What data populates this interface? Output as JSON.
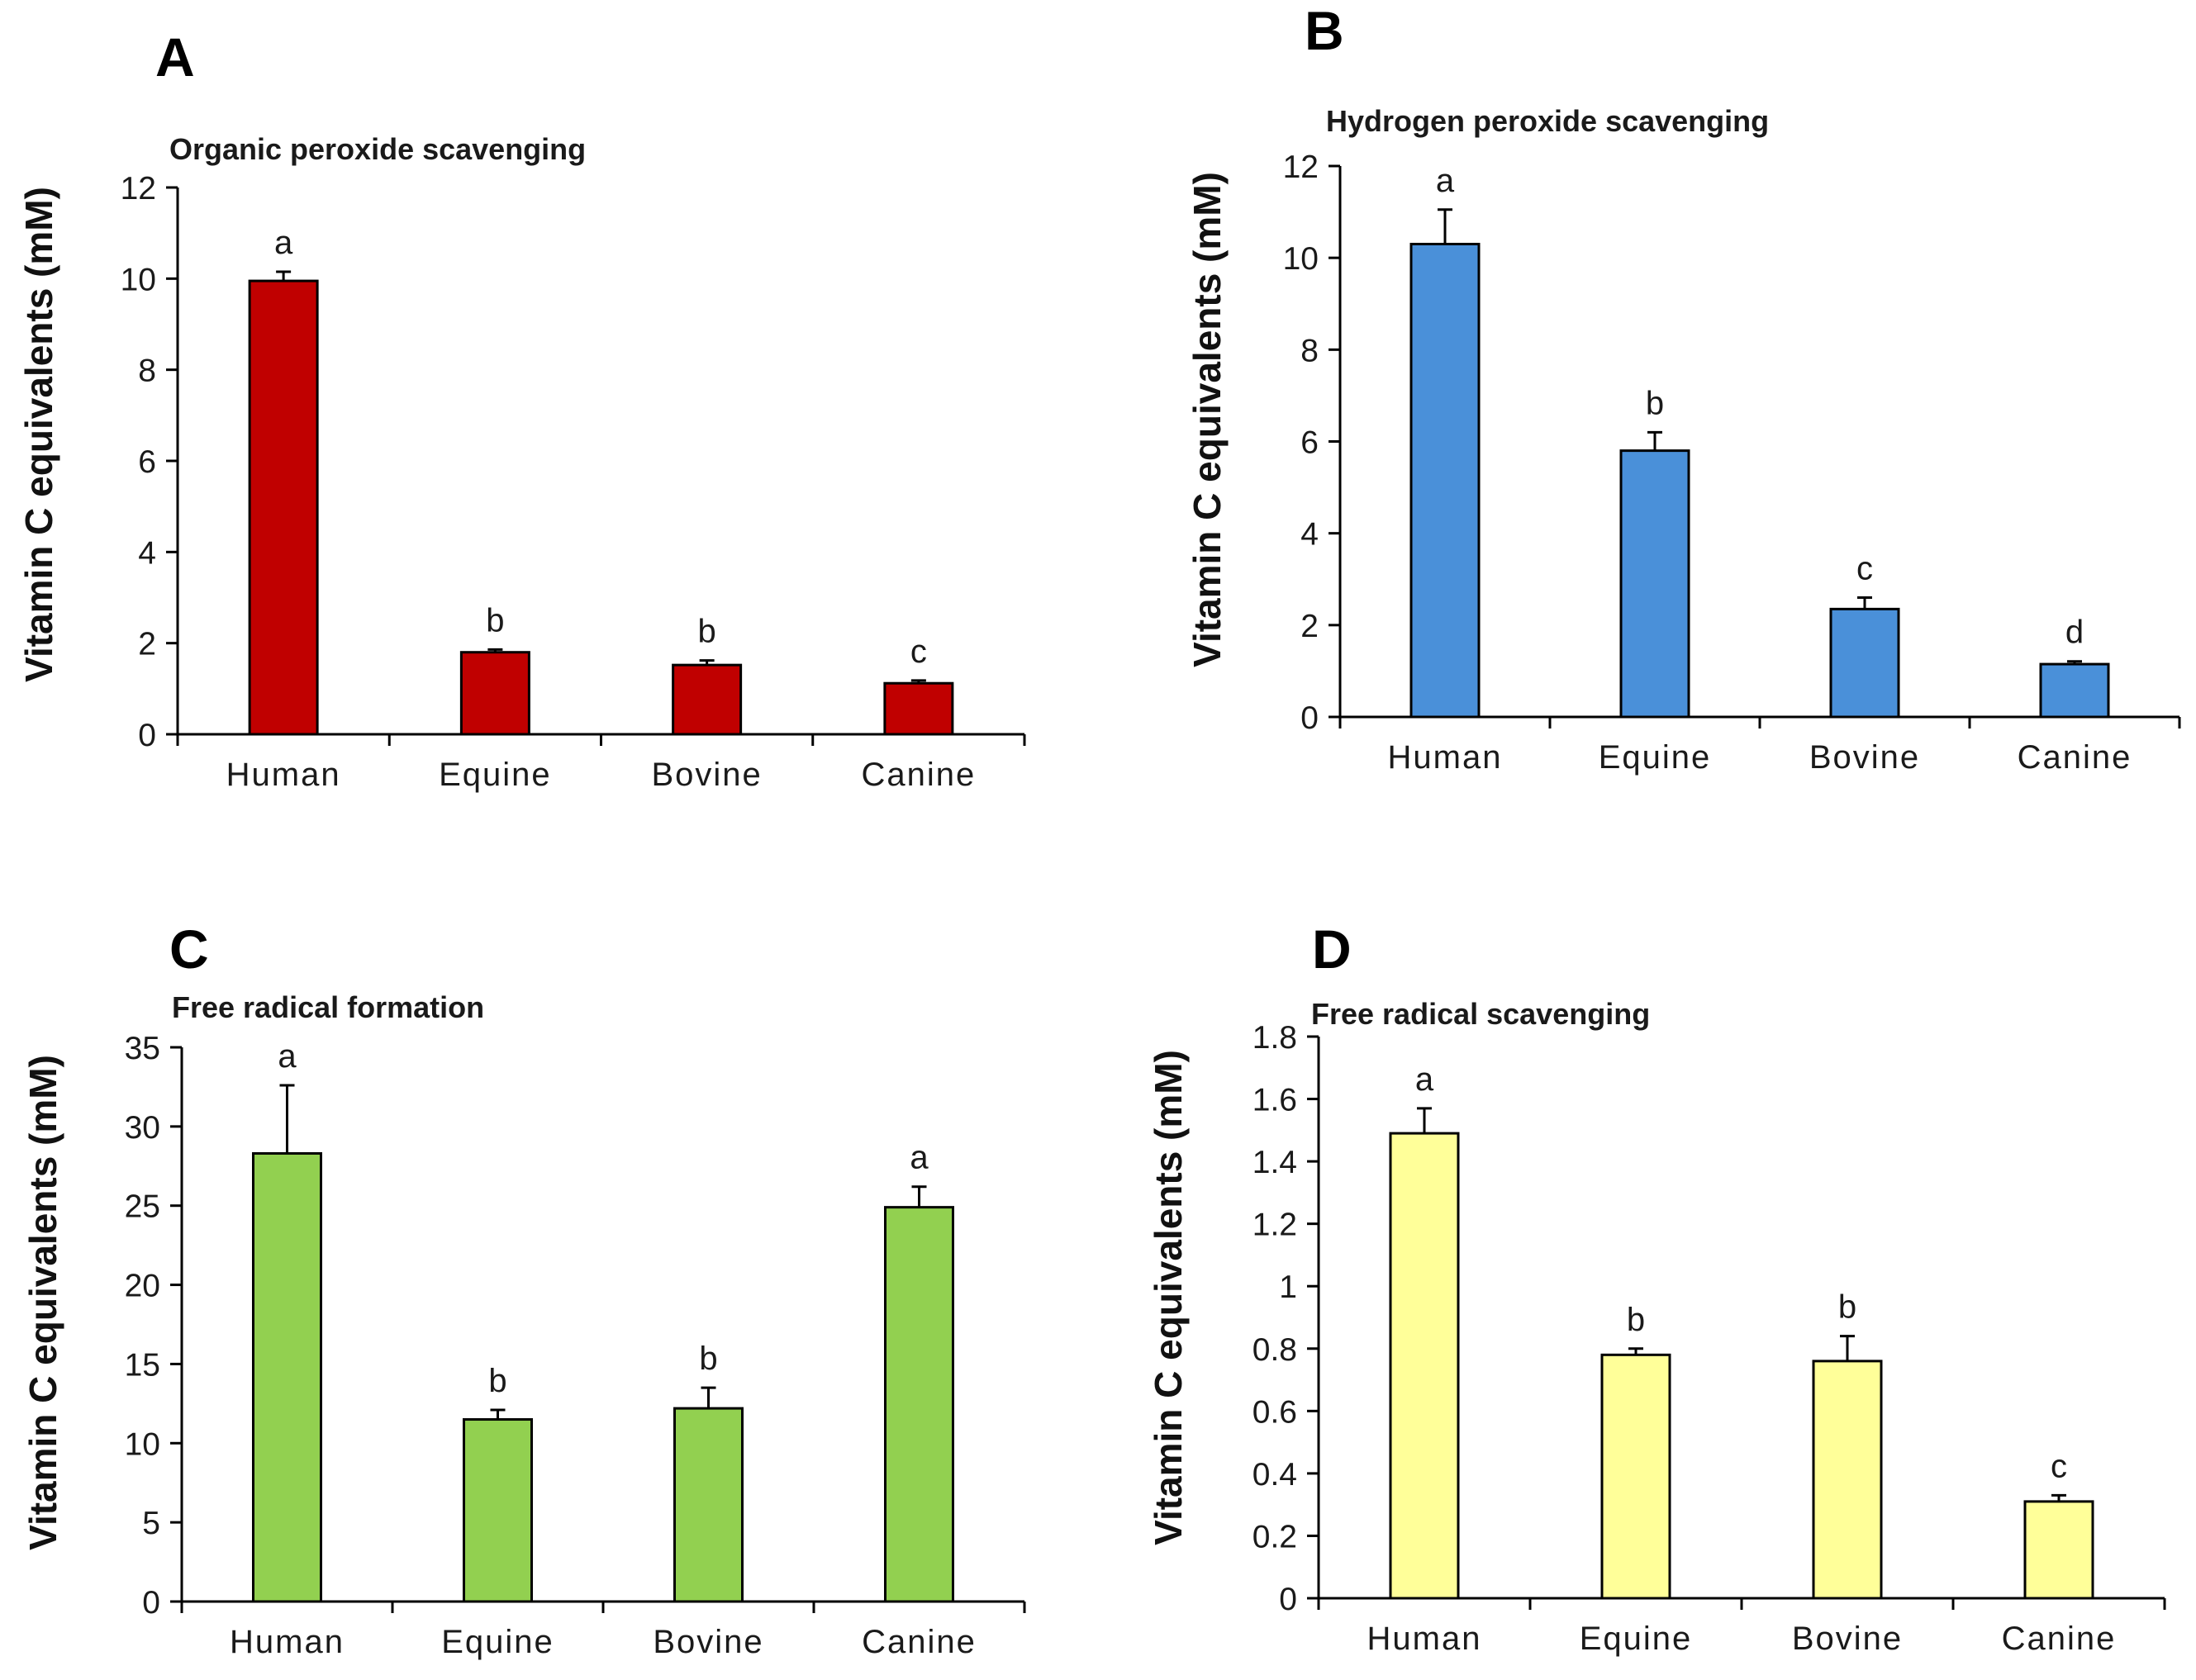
{
  "chart_data": [
    {
      "panel": "A",
      "type": "bar",
      "title": "Organic peroxide scavenging",
      "xlabel": "",
      "ylabel": "Vitamin C equivalents (mM)",
      "categories": [
        "Human",
        "Equine",
        "Bovine",
        "Canine"
      ],
      "values": [
        9.95,
        1.8,
        1.52,
        1.12
      ],
      "errors": [
        0.2,
        0.06,
        0.1,
        0.06
      ],
      "significance": [
        "a",
        "b",
        "b",
        "c"
      ],
      "ylim": [
        0,
        12
      ],
      "yticks": [
        0,
        2,
        4,
        6,
        8,
        10,
        12
      ],
      "ytick_labels": [
        "0",
        "2",
        "4",
        "6",
        "8",
        "10",
        "12"
      ],
      "bar_color": "#c00000",
      "grid": false
    },
    {
      "panel": "B",
      "type": "bar",
      "title": "Hydrogen peroxide scavenging",
      "xlabel": "",
      "ylabel": "Vitamin C equivalents (mM)",
      "categories": [
        "Human",
        "Equine",
        "Bovine",
        "Canine"
      ],
      "values": [
        10.3,
        5.8,
        2.35,
        1.15
      ],
      "errors": [
        0.75,
        0.4,
        0.25,
        0.06
      ],
      "significance": [
        "a",
        "b",
        "c",
        "d"
      ],
      "ylim": [
        0,
        12
      ],
      "yticks": [
        0,
        2,
        4,
        6,
        8,
        10,
        12
      ],
      "ytick_labels": [
        "0",
        "2",
        "4",
        "6",
        "8",
        "10",
        "12"
      ],
      "bar_color": "#4a90d9",
      "grid": false
    },
    {
      "panel": "C",
      "type": "bar",
      "title": "Free radical formation",
      "xlabel": "",
      "ylabel": "Vitamin C equivalents (mM)",
      "categories": [
        "Human",
        "Equine",
        "Bovine",
        "Canine"
      ],
      "values": [
        28.3,
        11.5,
        12.2,
        24.9
      ],
      "errors": [
        4.3,
        0.6,
        1.3,
        1.3
      ],
      "significance": [
        "a",
        "b",
        "b",
        "a"
      ],
      "ylim": [
        0,
        35
      ],
      "yticks": [
        0,
        5,
        10,
        15,
        20,
        25,
        30,
        35
      ],
      "ytick_labels": [
        "0",
        "5",
        "10",
        "15",
        "20",
        "25",
        "30",
        "35"
      ],
      "bar_color": "#92d050",
      "grid": false
    },
    {
      "panel": "D",
      "type": "bar",
      "title": "Free radical  scavenging",
      "xlabel": "",
      "ylabel": "Vitamin C equivalents (mM)",
      "categories": [
        "Human",
        "Equine",
        "Bovine",
        "Canine"
      ],
      "values": [
        1.49,
        0.78,
        0.76,
        0.31
      ],
      "errors": [
        0.08,
        0.02,
        0.08,
        0.02
      ],
      "significance": [
        "a",
        "b",
        "b",
        "c"
      ],
      "ylim": [
        0,
        1.8
      ],
      "yticks": [
        0,
        0.2,
        0.4,
        0.6,
        0.8,
        1,
        1.2,
        1.4,
        1.6,
        1.8
      ],
      "ytick_labels": [
        "0",
        "0.2",
        "0.4",
        "0.6",
        "0.8",
        "1",
        "1.2",
        "1.4",
        "1.6",
        "1.8"
      ],
      "bar_color": "#ffff99",
      "grid": false
    }
  ]
}
